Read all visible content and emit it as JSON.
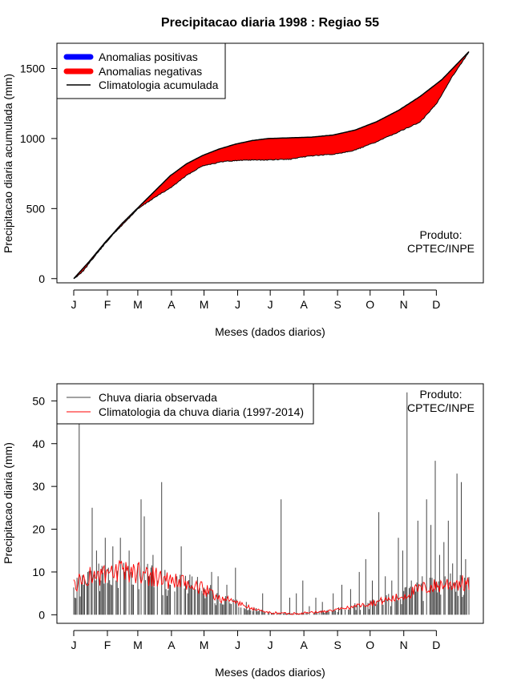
{
  "title": "Precipitacao diaria 1998 : Regiao 55",
  "charts": [
    {
      "id": "accumulated",
      "type": "area",
      "ylabel": "Precipitacao diaria acumulada (mm)",
      "xlabel": "Meses (dados diarios)",
      "ylim": [
        -30,
        1680
      ],
      "yticks": [
        0,
        500,
        1000,
        1500
      ],
      "month_labels": [
        "J",
        "F",
        "M",
        "A",
        "M",
        "J",
        "J",
        "A",
        "S",
        "O",
        "N",
        "D"
      ],
      "month_start_days": [
        1,
        32,
        60,
        91,
        121,
        152,
        182,
        213,
        244,
        274,
        305,
        335
      ],
      "legend": [
        "Anomalias positivas",
        "Anomalias negativas",
        "Climatologia acumulada"
      ],
      "legend_colors": [
        "#0000ff",
        "#ff0000",
        "#000000"
      ],
      "credit_line1": "Produto:",
      "credit_line2": "CPTEC/INPE",
      "climatology_points": {
        "days": [
          1,
          15,
          30,
          45,
          60,
          75,
          90,
          105,
          120,
          135,
          150,
          165,
          180,
          200,
          220,
          240,
          260,
          280,
          300,
          320,
          340,
          355,
          365
        ],
        "values": [
          0,
          120,
          260,
          390,
          505,
          620,
          735,
          820,
          880,
          925,
          960,
          985,
          1000,
          1005,
          1010,
          1025,
          1060,
          1120,
          1200,
          1300,
          1420,
          1540,
          1620
        ]
      },
      "observed_points": {
        "days": [
          1,
          10,
          20,
          35,
          50,
          60,
          75,
          90,
          105,
          120,
          140,
          160,
          180,
          200,
          220,
          240,
          260,
          280,
          300,
          320,
          335,
          350,
          365
        ],
        "values": [
          0,
          60,
          160,
          300,
          420,
          500,
          580,
          650,
          740,
          810,
          840,
          850,
          850,
          855,
          880,
          890,
          920,
          980,
          1050,
          1120,
          1250,
          1450,
          1620
        ]
      }
    },
    {
      "id": "daily",
      "type": "bar",
      "ylabel": "Precipitacao diaria (mm)",
      "xlabel": "Meses (dados diarios)",
      "ylim": [
        -2,
        54
      ],
      "yticks": [
        0,
        10,
        20,
        30,
        40,
        50
      ],
      "month_labels": [
        "J",
        "F",
        "M",
        "A",
        "M",
        "J",
        "J",
        "A",
        "S",
        "O",
        "N",
        "D"
      ],
      "month_start_days": [
        1,
        32,
        60,
        91,
        121,
        152,
        182,
        213,
        244,
        274,
        305,
        335
      ],
      "legend": [
        "Chuva diaria observada",
        "Climatologia da chuva diaria (1997-2014)"
      ],
      "legend_colors": [
        "#444444",
        "#ff0000"
      ],
      "credit_line1": "Produto:",
      "credit_line2": "CPTEC/INPE",
      "observed_peaks": {
        "days": [
          2,
          6,
          10,
          14,
          18,
          22,
          26,
          30,
          33,
          37,
          40,
          44,
          48,
          52,
          56,
          60,
          63,
          66,
          70,
          74,
          78,
          82,
          86,
          90,
          96,
          100,
          106,
          112,
          120,
          128,
          134,
          142,
          150,
          160,
          175,
          192,
          200,
          206,
          212,
          218,
          224,
          230,
          240,
          248,
          256,
          264,
          270,
          276,
          282,
          288,
          294,
          300,
          304,
          308,
          312,
          318,
          322,
          326,
          330,
          334,
          338,
          342,
          346,
          350,
          354,
          358,
          362
        ],
        "values": [
          4,
          45,
          7,
          10,
          25,
          15,
          8,
          18,
          11,
          16,
          8,
          18,
          10,
          15,
          7,
          12,
          27,
          23,
          9,
          14,
          8,
          31,
          6,
          7,
          9,
          16,
          5,
          6,
          5,
          10,
          9,
          7,
          11,
          3,
          5,
          27,
          4,
          5,
          8,
          2,
          4,
          3,
          5,
          7,
          6,
          10,
          13,
          8,
          24,
          9,
          8,
          18,
          15,
          52,
          8,
          22,
          9,
          27,
          21,
          36,
          14,
          17,
          22,
          12,
          33,
          31,
          13
        ]
      },
      "climatology_points": {
        "days": [
          1,
          15,
          30,
          45,
          60,
          75,
          90,
          105,
          120,
          135,
          150,
          165,
          180,
          200,
          220,
          240,
          260,
          280,
          300,
          320,
          340,
          355,
          365
        ],
        "values": [
          7,
          9,
          9,
          10,
          10,
          9,
          8,
          7,
          6,
          4,
          3,
          1.5,
          0.5,
          0.3,
          0.5,
          1,
          2,
          3,
          4,
          6,
          7,
          7.5,
          7
        ]
      }
    }
  ]
}
